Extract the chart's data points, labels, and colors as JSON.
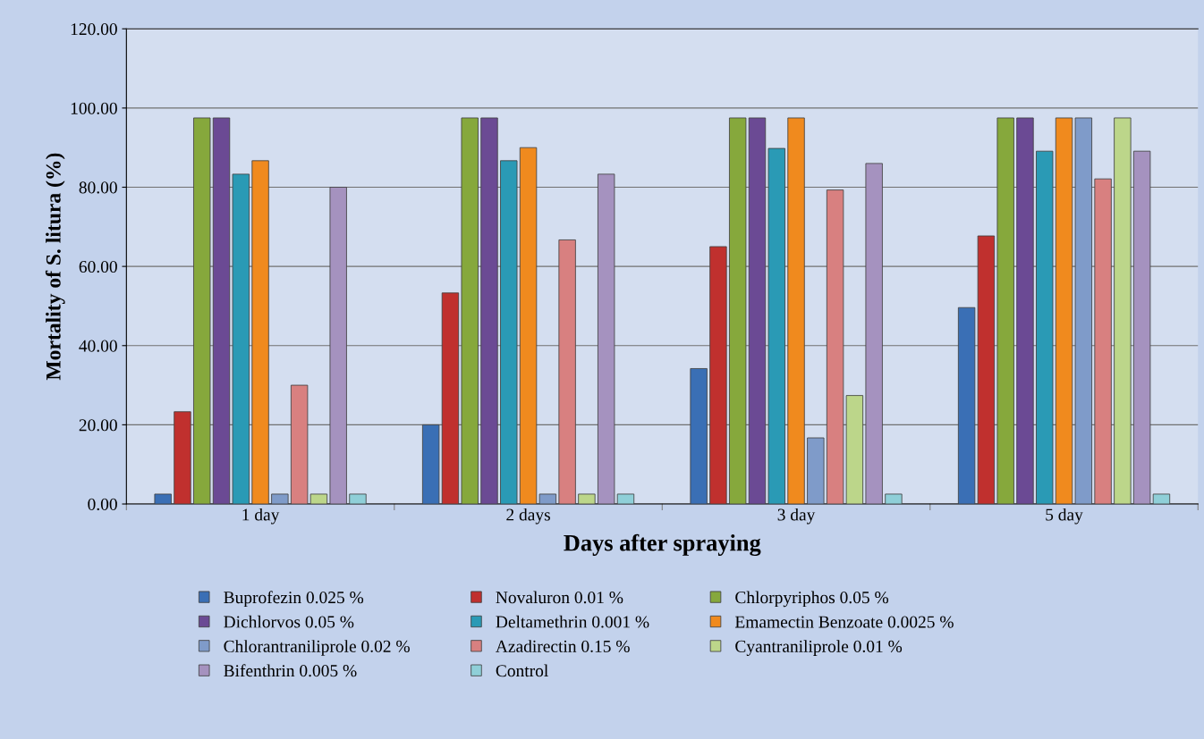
{
  "chart_data": {
    "type": "bar",
    "xlabel": "Days after spraying",
    "ylabel": "Mortality of S. litura (%)",
    "categories": [
      "1 day",
      "2 days",
      "3 day",
      "5 day"
    ],
    "ylim": [
      0,
      120
    ],
    "yticks": [
      {
        "value": 0,
        "label": "0.00"
      },
      {
        "value": 20,
        "label": "20.00"
      },
      {
        "value": 40,
        "label": "40.00"
      },
      {
        "value": 60,
        "label": "60.00"
      },
      {
        "value": 80,
        "label": "80.00"
      },
      {
        "value": 100,
        "label": "100.00"
      },
      {
        "value": 120,
        "label": "120.00"
      }
    ],
    "grid": "y",
    "legend": "bottom",
    "series": [
      {
        "name": "Buprofezin 0.025 %",
        "color": "#3a6fb5",
        "values": [
          2.5,
          20,
          34.2,
          49.6
        ]
      },
      {
        "name": "Novaluron 0.01 %",
        "color": "#c0302e",
        "values": [
          23.3,
          53.3,
          65,
          67.7
        ]
      },
      {
        "name": "Chlorpyriphos 0.05 %",
        "color": "#86a83c",
        "values": [
          97.5,
          97.5,
          97.5,
          97.5
        ]
      },
      {
        "name": "Dichlorvos 0.05 %",
        "color": "#6b4a94",
        "values": [
          97.5,
          97.5,
          97.5,
          97.5
        ]
      },
      {
        "name": "Deltamethrin 0.001 %",
        "color": "#2a9ab5",
        "values": [
          83.3,
          86.7,
          89.8,
          89.1
        ]
      },
      {
        "name": "Emamectin Benzoate 0.0025 %",
        "color": "#f08a1e",
        "values": [
          86.7,
          90,
          97.5,
          97.5
        ]
      },
      {
        "name": "Chlorantraniliprole 0.02 %",
        "color": "#7f9bc9",
        "values": [
          2.5,
          2.5,
          16.7,
          97.5
        ]
      },
      {
        "name": "Azadirectin 0.15 %",
        "color": "#d88080",
        "values": [
          30,
          66.7,
          79.3,
          82.1
        ]
      },
      {
        "name": "Cyantraniliprole 0.01 %",
        "color": "#bcd68a",
        "values": [
          2.5,
          2.5,
          27.4,
          97.5
        ]
      },
      {
        "name": "Bifenthrin 0.005 %",
        "color": "#a592bf",
        "values": [
          80,
          83.3,
          86,
          89.1
        ]
      },
      {
        "name": "Control",
        "color": "#8fcfd8",
        "values": [
          2.5,
          2.5,
          2.5,
          2.5
        ]
      }
    ]
  }
}
